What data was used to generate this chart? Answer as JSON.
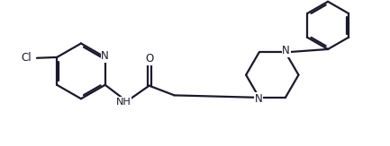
{
  "bg_color": "#ffffff",
  "line_color": "#1a1a2e",
  "line_width": 1.6,
  "font_size": 8.5,
  "fig_width": 4.33,
  "fig_height": 1.63,
  "dpi": 100,
  "xlim": [
    0,
    10
  ],
  "ylim": [
    0,
    3.8
  ]
}
